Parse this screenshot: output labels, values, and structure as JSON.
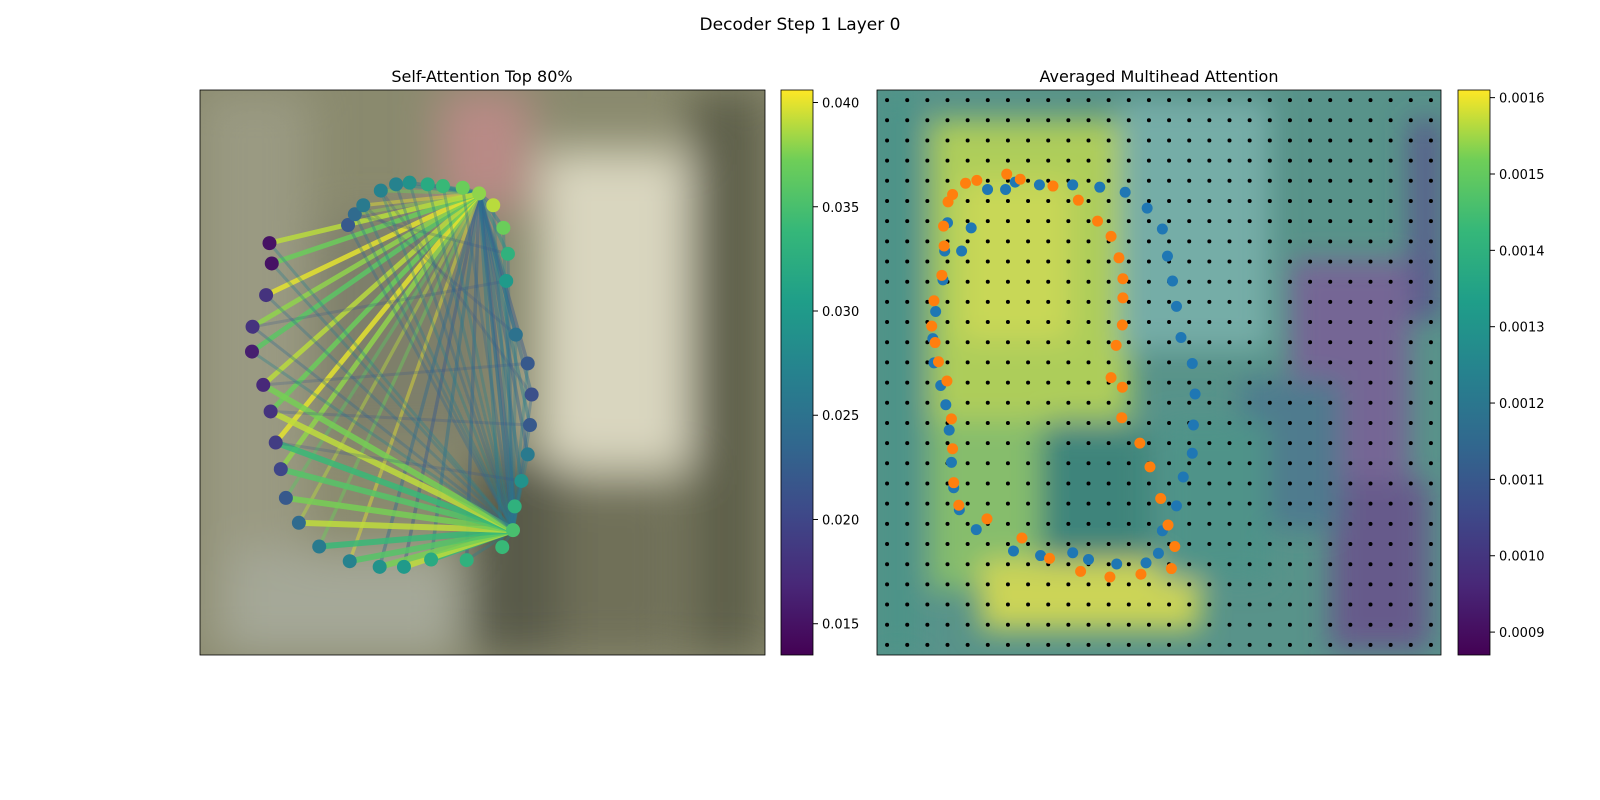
{
  "figure": {
    "suptitle": "Decoder Step 1 Layer 0"
  },
  "chart_data": [
    {
      "type": "scatter",
      "title": "Self-Attention Top 80%",
      "xlabel": "",
      "ylabel": "",
      "colormap": "viridis",
      "colorbar": {
        "range": [
          0.0135,
          0.0406
        ],
        "ticks": [
          "0.015",
          "0.020",
          "0.025",
          "0.030",
          "0.035",
          "0.040"
        ],
        "tick_values": [
          0.015,
          0.02,
          0.025,
          0.03,
          0.035,
          0.04
        ]
      },
      "grid": false,
      "background": "blurred photo",
      "points": [
        [
          0.262,
          0.239,
          0.022
        ],
        [
          0.274,
          0.22,
          0.024
        ],
        [
          0.289,
          0.204,
          0.026
        ],
        [
          0.32,
          0.178,
          0.027
        ],
        [
          0.347,
          0.167,
          0.027
        ],
        [
          0.371,
          0.164,
          0.029
        ],
        [
          0.403,
          0.167,
          0.032
        ],
        [
          0.43,
          0.17,
          0.034
        ],
        [
          0.465,
          0.173,
          0.037
        ],
        [
          0.494,
          0.183,
          0.038
        ],
        [
          0.519,
          0.204,
          0.039
        ],
        [
          0.537,
          0.244,
          0.037
        ],
        [
          0.545,
          0.29,
          0.033
        ],
        [
          0.542,
          0.338,
          0.03
        ],
        [
          0.559,
          0.433,
          0.025
        ],
        [
          0.58,
          0.484,
          0.022
        ],
        [
          0.587,
          0.539,
          0.021
        ],
        [
          0.584,
          0.593,
          0.022
        ],
        [
          0.58,
          0.645,
          0.026
        ],
        [
          0.569,
          0.692,
          0.029
        ],
        [
          0.557,
          0.737,
          0.033
        ],
        [
          0.554,
          0.779,
          0.035
        ],
        [
          0.535,
          0.809,
          0.034
        ],
        [
          0.472,
          0.832,
          0.033
        ],
        [
          0.409,
          0.831,
          0.032
        ],
        [
          0.361,
          0.844,
          0.03
        ],
        [
          0.318,
          0.844,
          0.029
        ],
        [
          0.265,
          0.834,
          0.027
        ],
        [
          0.211,
          0.808,
          0.026
        ],
        [
          0.175,
          0.766,
          0.024
        ],
        [
          0.152,
          0.722,
          0.022
        ],
        [
          0.143,
          0.671,
          0.02
        ],
        [
          0.134,
          0.624,
          0.019
        ],
        [
          0.125,
          0.569,
          0.018
        ],
        [
          0.112,
          0.522,
          0.017
        ],
        [
          0.092,
          0.463,
          0.016
        ],
        [
          0.093,
          0.419,
          0.018
        ],
        [
          0.117,
          0.363,
          0.018
        ],
        [
          0.127,
          0.307,
          0.015
        ],
        [
          0.123,
          0.271,
          0.015
        ]
      ]
    },
    {
      "type": "heatmap",
      "title": "Averaged Multihead Attention",
      "xlabel": "",
      "ylabel": "",
      "colormap": "viridis",
      "colorbar": {
        "range": [
          0.00087,
          0.00161
        ],
        "ticks": [
          "0.0009",
          "0.0010",
          "0.0011",
          "0.0012",
          "0.0013",
          "0.0014",
          "0.0015",
          "0.0016"
        ],
        "tick_values": [
          0.0009,
          0.001,
          0.0011,
          0.0012,
          0.0013,
          0.0014,
          0.0015,
          0.0016
        ]
      },
      "grid_points": {
        "cols": 28,
        "rows": 28,
        "color": "#000000"
      },
      "series": [
        {
          "color": "#1f77b4",
          "points": [
            [
              0.101,
              0.483
            ],
            [
              0.099,
              0.44
            ],
            [
              0.104,
              0.392
            ],
            [
              0.117,
              0.336
            ],
            [
              0.12,
              0.285
            ],
            [
              0.125,
              0.235
            ],
            [
              0.15,
              0.285
            ],
            [
              0.167,
              0.244
            ],
            [
              0.196,
              0.176
            ],
            [
              0.228,
              0.176
            ],
            [
              0.245,
              0.163
            ],
            [
              0.288,
              0.168
            ],
            [
              0.347,
              0.168
            ],
            [
              0.395,
              0.172
            ],
            [
              0.44,
              0.181
            ],
            [
              0.479,
              0.209
            ],
            [
              0.506,
              0.246
            ],
            [
              0.515,
              0.294
            ],
            [
              0.524,
              0.338
            ],
            [
              0.531,
              0.383
            ],
            [
              0.539,
              0.438
            ],
            [
              0.559,
              0.484
            ],
            [
              0.564,
              0.538
            ],
            [
              0.561,
              0.593
            ],
            [
              0.559,
              0.643
            ],
            [
              0.543,
              0.685
            ],
            [
              0.531,
              0.736
            ],
            [
              0.506,
              0.78
            ],
            [
              0.499,
              0.82
            ],
            [
              0.477,
              0.837
            ],
            [
              0.425,
              0.839
            ],
            [
              0.375,
              0.831
            ],
            [
              0.347,
              0.819
            ],
            [
              0.29,
              0.824
            ],
            [
              0.242,
              0.816
            ],
            [
              0.176,
              0.778
            ],
            [
              0.146,
              0.743
            ],
            [
              0.136,
              0.704
            ],
            [
              0.132,
              0.659
            ],
            [
              0.128,
              0.602
            ],
            [
              0.122,
              0.557
            ],
            [
              0.113,
              0.523
            ]
          ]
        },
        {
          "color": "#ff7f0e",
          "points": [
            [
              0.126,
              0.198
            ],
            [
              0.134,
              0.185
            ],
            [
              0.157,
              0.165
            ],
            [
              0.177,
              0.16
            ],
            [
              0.23,
              0.149
            ],
            [
              0.254,
              0.158
            ],
            [
              0.312,
              0.17
            ],
            [
              0.357,
              0.195
            ],
            [
              0.391,
              0.232
            ],
            [
              0.415,
              0.259
            ],
            [
              0.429,
              0.297
            ],
            [
              0.436,
              0.334
            ],
            [
              0.436,
              0.368
            ],
            [
              0.435,
              0.416
            ],
            [
              0.424,
              0.452
            ],
            [
              0.415,
              0.509
            ],
            [
              0.435,
              0.526
            ],
            [
              0.434,
              0.58
            ],
            [
              0.466,
              0.625
            ],
            [
              0.484,
              0.667
            ],
            [
              0.503,
              0.723
            ],
            [
              0.516,
              0.77
            ],
            [
              0.528,
              0.808
            ],
            [
              0.522,
              0.847
            ],
            [
              0.468,
              0.857
            ],
            [
              0.413,
              0.862
            ],
            [
              0.361,
              0.852
            ],
            [
              0.306,
              0.829
            ],
            [
              0.257,
              0.793
            ],
            [
              0.195,
              0.759
            ],
            [
              0.145,
              0.735
            ],
            [
              0.136,
              0.695
            ],
            [
              0.134,
              0.635
            ],
            [
              0.132,
              0.582
            ],
            [
              0.124,
              0.515
            ],
            [
              0.109,
              0.481
            ],
            [
              0.103,
              0.447
            ],
            [
              0.097,
              0.418
            ],
            [
              0.101,
              0.373
            ],
            [
              0.115,
              0.328
            ],
            [
              0.119,
              0.276
            ],
            [
              0.118,
              0.241
            ]
          ]
        }
      ]
    }
  ]
}
